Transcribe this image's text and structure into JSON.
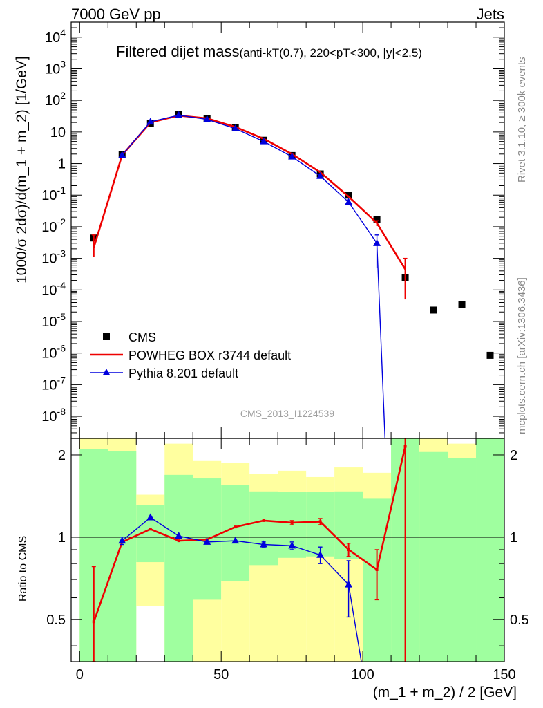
{
  "header": {
    "left": "7000 GeV pp",
    "right": "Jets"
  },
  "side_labels": {
    "rivet": "Rivet 3.1.10, ≥ 300k events",
    "mcplots": "mcplots.cern.ch [arXiv:1306.3436]"
  },
  "watermark": "CMS_2013_I1224539",
  "chart_data": [
    {
      "type": "line",
      "panel": "main",
      "title_main": "Filtered dijet mass",
      "title_sub": "(anti-kT(0.7), 220<pT<300, |y|<2.5)",
      "ylabel": "1000/σ 2dσ)/d(m_1 + m_2) [1/GeV]",
      "xlim": [
        -3,
        150
      ],
      "ylim": [
        2e-09,
        30000.0
      ],
      "yscale": "log",
      "y_tick_labels": [
        "10^-8",
        "10^-7",
        "10^-6",
        "10^-5",
        "10^-4",
        "10^-3",
        "10^-2",
        "10^-1",
        "1",
        "10",
        "10^2",
        "10^3",
        "10^4"
      ],
      "legend_position": "bottom-left",
      "series": [
        {
          "name": "CMS",
          "style": "marker-square",
          "color": "#000000",
          "x": [
            5,
            15,
            25,
            35,
            45,
            55,
            65,
            75,
            85,
            95,
            105,
            115,
            125,
            135,
            145
          ],
          "y": [
            0.0044,
            1.9,
            19,
            35,
            27,
            13.5,
            5.5,
            1.8,
            0.47,
            0.1,
            0.017,
            0.00024,
            2.3e-05,
            3.4e-05,
            8.5e-07
          ]
        },
        {
          "name": "POWHEG BOX r3744 default",
          "style": "line",
          "color": "#ee0000",
          "x": [
            5,
            15,
            25,
            35,
            45,
            55,
            65,
            75,
            85,
            95,
            105,
            115
          ],
          "y": [
            0.0022,
            1.85,
            20,
            33,
            27,
            14.4,
            6.1,
            2.0,
            0.53,
            0.09,
            0.013,
            0.00045
          ],
          "err_low": [
            0.0011,
            null,
            null,
            null,
            null,
            null,
            null,
            null,
            null,
            null,
            0.0025,
            0.0004
          ],
          "err_high": [
            0.0033,
            null,
            null,
            null,
            null,
            null,
            null,
            null,
            null,
            null,
            0.0025,
            0.00055
          ]
        },
        {
          "name": "Pythia 8.201 default",
          "style": "line-triangle",
          "color": "#0000dd",
          "x": [
            15,
            25,
            35,
            45,
            55,
            65,
            75,
            85,
            95,
            105,
            108
          ],
          "y": [
            1.85,
            21,
            34,
            25,
            12.8,
            5.0,
            1.65,
            0.4,
            0.06,
            0.003,
            1e-09
          ],
          "err_low": [
            null,
            null,
            null,
            null,
            null,
            null,
            null,
            null,
            null,
            0.0025,
            null
          ],
          "err_high": [
            null,
            null,
            null,
            null,
            null,
            null,
            null,
            null,
            null,
            0.0025,
            null
          ]
        }
      ]
    },
    {
      "type": "line",
      "panel": "ratio",
      "xlabel": "(m_1 + m_2) / 2 [GeV]",
      "ylabel": "Ratio to CMS",
      "xlim": [
        -3,
        150
      ],
      "ylim": [
        0.35,
        2.3
      ],
      "x_ticks": [
        0,
        50,
        100,
        150
      ],
      "y_ticks": [
        0.5,
        1,
        2
      ],
      "bands": {
        "bin_edges": [
          0,
          10,
          20,
          30,
          40,
          50,
          60,
          70,
          80,
          90,
          100,
          110,
          120,
          130,
          140,
          150
        ],
        "yellow_low": [
          0.35,
          0.35,
          0.56,
          0.35,
          0.35,
          0.35,
          0.35,
          0.35,
          0.35,
          0.35,
          0.35,
          0.35,
          0.38,
          0.35,
          0.35
        ],
        "yellow_high": [
          2.3,
          2.3,
          1.43,
          2.2,
          1.9,
          1.87,
          1.7,
          1.75,
          1.66,
          1.8,
          1.72,
          2.3,
          2.3,
          2.2,
          2.3
        ],
        "green_low": [
          0.35,
          0.35,
          0.81,
          0.35,
          0.59,
          0.69,
          0.79,
          0.84,
          0.85,
          0.83,
          0.35,
          0.35,
          0.35,
          0.35,
          0.35
        ],
        "green_high": [
          2.1,
          2.07,
          1.31,
          1.69,
          1.64,
          1.55,
          1.47,
          1.46,
          1.46,
          1.47,
          1.39,
          2.3,
          2.05,
          1.95,
          2.3
        ]
      },
      "series": [
        {
          "name": "POWHEG BOX r3744 default",
          "color": "#ee0000",
          "x": [
            5,
            15,
            25,
            35,
            45,
            55,
            65,
            75,
            85,
            95,
            105,
            115
          ],
          "y": [
            0.49,
            0.96,
            1.07,
            0.97,
            0.98,
            1.09,
            1.15,
            1.13,
            1.14,
            0.9,
            0.76,
            2.15
          ],
          "err_low": [
            0.14,
            null,
            null,
            null,
            null,
            null,
            null,
            0.02,
            0.03,
            0.05,
            0.17,
            1.9
          ],
          "err_high": [
            0.29,
            null,
            null,
            null,
            null,
            null,
            null,
            0.02,
            0.03,
            0.05,
            0.14,
            0.2
          ]
        },
        {
          "name": "Pythia 8.201 default",
          "color": "#0000dd",
          "x": [
            15,
            25,
            35,
            45,
            55,
            65,
            75,
            85,
            95,
            99.5
          ],
          "y": [
            0.97,
            1.18,
            1.01,
            0.96,
            0.97,
            0.94,
            0.93,
            0.86,
            0.67,
            0.35
          ],
          "err_low": [
            0.03,
            null,
            null,
            null,
            null,
            0.02,
            0.03,
            0.06,
            0.16,
            null
          ],
          "err_high": [
            0.03,
            null,
            null,
            null,
            null,
            0.02,
            0.03,
            0.06,
            0.15,
            null
          ]
        }
      ]
    }
  ]
}
